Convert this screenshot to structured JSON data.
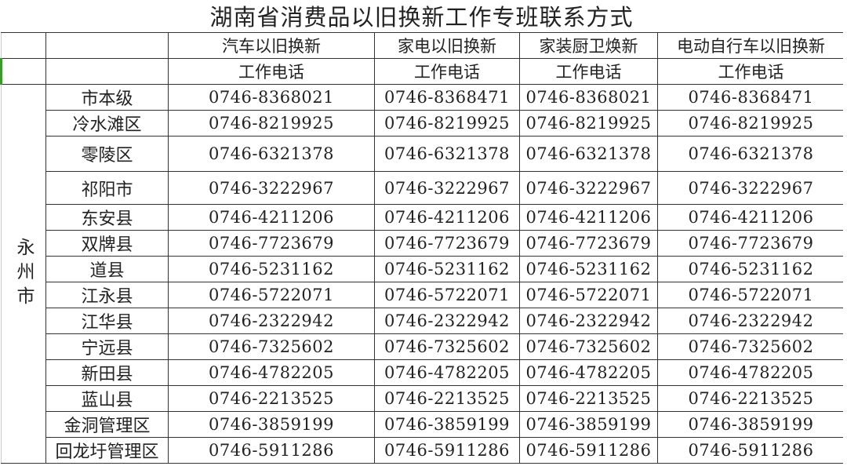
{
  "title": "湖南省消费品以旧换新工作专班联系方式",
  "header": {
    "columns": [
      "汽车以旧换新",
      "家电以旧换新",
      "家装厨卫焕新",
      "电动自行车以旧换新"
    ],
    "subheader": "工作电话"
  },
  "city": "永州市",
  "rows": [
    {
      "region": "市本级",
      "phones": [
        "0746-8368021",
        "0746-8368471",
        "0746-8368021",
        "0746-8368471"
      ]
    },
    {
      "region": "冷水滩区",
      "phones": [
        "0746-8219925",
        "0746-8219925",
        "0746-8219925",
        "0746-8219925"
      ]
    },
    {
      "region": "零陵区",
      "phones": [
        "0746-6321378",
        "0746-6321378",
        "0746-6321378",
        "0746-6321378"
      ]
    },
    {
      "region": "祁阳市",
      "phones": [
        "0746-3222967",
        "0746-3222967",
        "0746-3222967",
        "0746-3222967"
      ]
    },
    {
      "region": "东安县",
      "phones": [
        "0746-4211206",
        "0746-4211206",
        "0746-4211206",
        "0746-4211206"
      ]
    },
    {
      "region": "双牌县",
      "phones": [
        "0746-7723679",
        "0746-7723679",
        "0746-7723679",
        "0746-7723679"
      ]
    },
    {
      "region": "道县",
      "phones": [
        "0746-5231162",
        "0746-5231162",
        "0746-5231162",
        "0746-5231162"
      ]
    },
    {
      "region": "江永县",
      "phones": [
        "0746-5722071",
        "0746-5722071",
        "0746-5722071",
        "0746-5722071"
      ]
    },
    {
      "region": "江华县",
      "phones": [
        "0746-2322942",
        "0746-2322942",
        "0746-2322942",
        "0746-2322942"
      ]
    },
    {
      "region": "宁远县",
      "phones": [
        "0746-7325602",
        "0746-7325602",
        "0746-7325602",
        "0746-7325602"
      ]
    },
    {
      "region": "新田县",
      "phones": [
        "0746-4782205",
        "0746-4782205",
        "0746-4782205",
        "0746-4782205"
      ]
    },
    {
      "region": "蓝山县",
      "phones": [
        "0746-2213525",
        "0746-2213525",
        "0746-2213525",
        "0746-2213525"
      ]
    },
    {
      "region": "金洞管理区",
      "phones": [
        "0746-3859199",
        "0746-3859199",
        "0746-3859199",
        "0746-3859199"
      ]
    },
    {
      "region": "回龙圩管理区",
      "phones": [
        "0746-5911286",
        "0746-5911286",
        "0746-5911286",
        "0746-5911286"
      ]
    }
  ],
  "colors": {
    "border": "#333333",
    "selection_accent": "#3a9a2a"
  }
}
